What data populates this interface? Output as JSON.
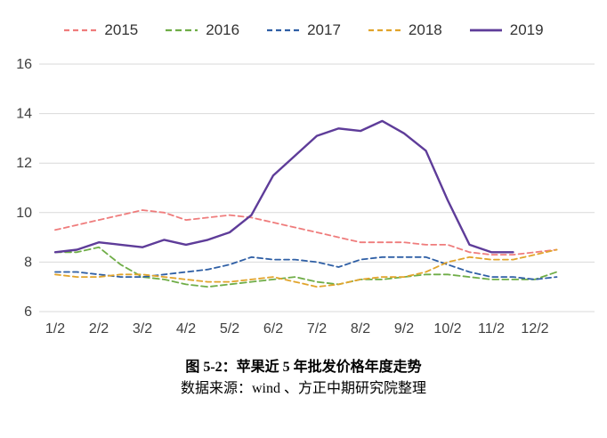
{
  "caption": {
    "title": "图 5-2：苹果近 5 年批发价格年度走势",
    "source": "数据来源：wind 、方正中期研究院整理"
  },
  "colors": {
    "grid": "#d9d9d9",
    "tick_text": "#404040"
  },
  "chart_data": {
    "type": "line",
    "title": "图 5-2：苹果近 5 年批发价格年度走势",
    "source": "数据来源：wind 、方正中期研究院整理",
    "xlabel": "",
    "ylabel": "",
    "ylim": [
      6,
      16
    ],
    "y_ticks": [
      6,
      8,
      10,
      12,
      14,
      16
    ],
    "x_tick_labels": [
      "1/2",
      "2/2",
      "3/2",
      "4/2",
      "5/2",
      "6/2",
      "7/2",
      "8/2",
      "9/2",
      "10/2",
      "11/2",
      "12/2"
    ],
    "points_per_month": 2,
    "grid": "horizontal",
    "legend_position": "top",
    "series": [
      {
        "name": "2015",
        "color": "#ef7c7c",
        "dash": "6 4",
        "width": 1.8,
        "values": [
          9.3,
          9.5,
          9.7,
          9.9,
          10.1,
          10.0,
          9.7,
          9.8,
          9.9,
          9.8,
          9.6,
          9.4,
          9.2,
          9.0,
          8.8,
          8.8,
          8.8,
          8.7,
          8.7,
          8.4,
          8.3,
          8.3,
          8.4,
          8.5
        ]
      },
      {
        "name": "2016",
        "color": "#6fad47",
        "dash": "7 4",
        "width": 1.8,
        "values": [
          8.4,
          8.4,
          8.6,
          7.9,
          7.4,
          7.3,
          7.1,
          7.0,
          7.1,
          7.2,
          7.3,
          7.4,
          7.2,
          7.1,
          7.3,
          7.3,
          7.4,
          7.5,
          7.5,
          7.4,
          7.3,
          7.3,
          7.3,
          7.6
        ]
      },
      {
        "name": "2017",
        "color": "#2f5fa5",
        "dash": "6 4",
        "width": 1.8,
        "values": [
          7.6,
          7.6,
          7.5,
          7.4,
          7.4,
          7.5,
          7.6,
          7.7,
          7.9,
          8.2,
          8.1,
          8.1,
          8.0,
          7.8,
          8.1,
          8.2,
          8.2,
          8.2,
          7.9,
          7.6,
          7.4,
          7.4,
          7.3,
          7.4
        ]
      },
      {
        "name": "2018",
        "color": "#e1a42b",
        "dash": "6 4",
        "width": 1.8,
        "values": [
          7.5,
          7.4,
          7.4,
          7.5,
          7.5,
          7.4,
          7.3,
          7.2,
          7.2,
          7.3,
          7.4,
          7.2,
          7.0,
          7.1,
          7.3,
          7.4,
          7.4,
          7.6,
          8.0,
          8.2,
          8.1,
          8.1,
          8.3,
          8.5
        ]
      },
      {
        "name": "2019",
        "color": "#5e3c99",
        "dash": null,
        "width": 2.4,
        "values": [
          8.4,
          8.5,
          8.8,
          8.7,
          8.6,
          8.9,
          8.7,
          8.9,
          9.2,
          9.9,
          11.5,
          12.3,
          13.1,
          13.4,
          13.3,
          13.7,
          13.2,
          12.5,
          10.5,
          8.7,
          8.4,
          8.4
        ]
      }
    ]
  }
}
